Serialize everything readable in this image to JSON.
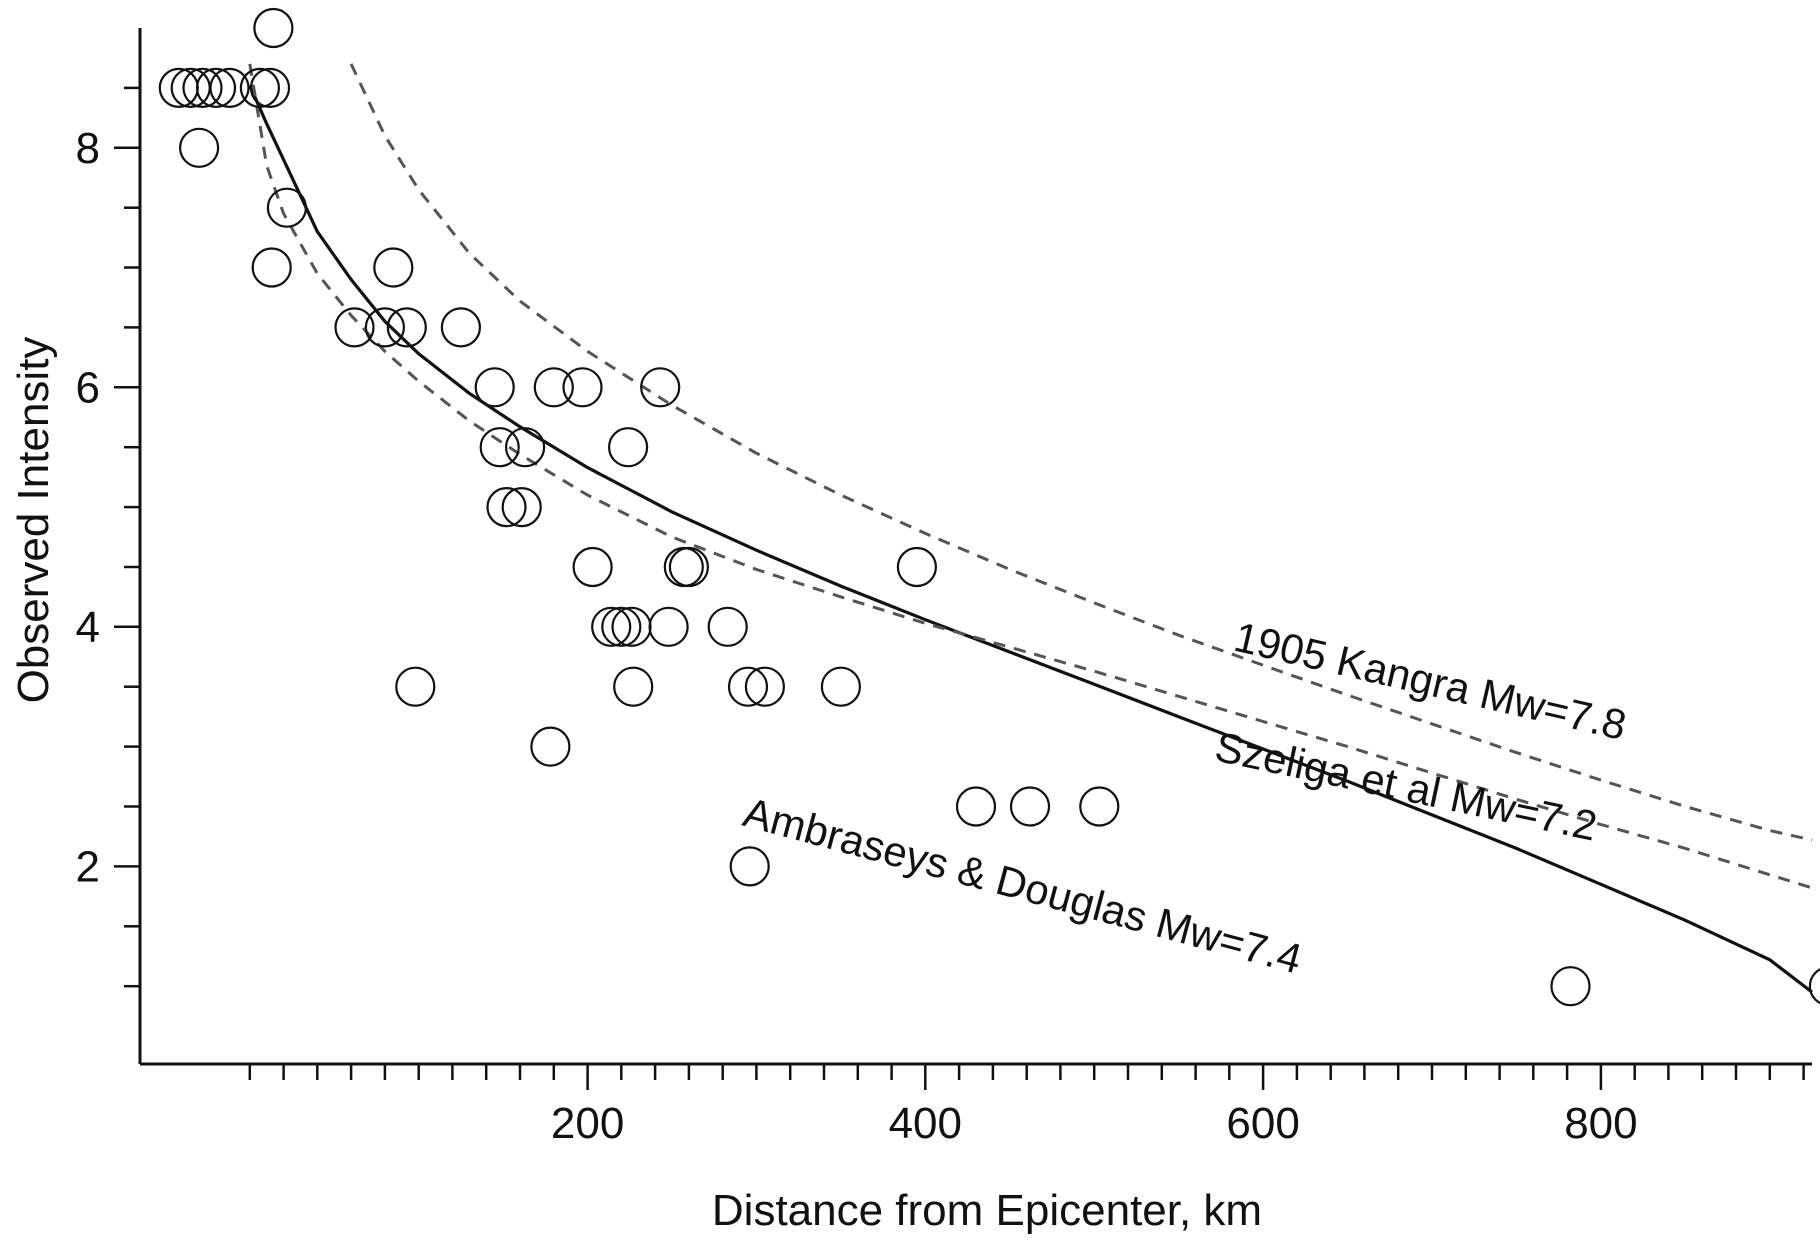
{
  "chart_data": {
    "type": "scatter",
    "title": "",
    "xlabel": "Distance from Epicenter, km",
    "ylabel": "Observed  Intensity",
    "xlim": [
      -65,
      925
    ],
    "ylim": [
      0.35,
      9.0
    ],
    "x_ticks": [
      200,
      400,
      600,
      800
    ],
    "x_minor_step": 20,
    "y_ticks": [
      2,
      4,
      6,
      8
    ],
    "y_minor_step": 0.5,
    "grid": false,
    "marker": "open-circle",
    "points": [
      {
        "x": -42,
        "y": 8.5
      },
      {
        "x": -35,
        "y": 8.5
      },
      {
        "x": -28,
        "y": 8.5
      },
      {
        "x": -20,
        "y": 8.5
      },
      {
        "x": -12,
        "y": 8.5
      },
      {
        "x": 6,
        "y": 8.5
      },
      {
        "x": 12,
        "y": 8.5
      },
      {
        "x": 14,
        "y": 9.0
      },
      {
        "x": -30,
        "y": 8.0
      },
      {
        "x": 22,
        "y": 7.5
      },
      {
        "x": 13,
        "y": 7.0
      },
      {
        "x": 85,
        "y": 7.0
      },
      {
        "x": 62,
        "y": 6.5
      },
      {
        "x": 80,
        "y": 6.5
      },
      {
        "x": 93,
        "y": 6.5
      },
      {
        "x": 125,
        "y": 6.5
      },
      {
        "x": 145,
        "y": 6.0
      },
      {
        "x": 180,
        "y": 6.0
      },
      {
        "x": 197,
        "y": 6.0
      },
      {
        "x": 243,
        "y": 6.0
      },
      {
        "x": 148,
        "y": 5.5
      },
      {
        "x": 163,
        "y": 5.5
      },
      {
        "x": 224,
        "y": 5.5
      },
      {
        "x": 152,
        "y": 5.0
      },
      {
        "x": 161,
        "y": 5.0
      },
      {
        "x": 203,
        "y": 4.5
      },
      {
        "x": 257,
        "y": 4.5
      },
      {
        "x": 260,
        "y": 4.5
      },
      {
        "x": 395,
        "y": 4.5
      },
      {
        "x": 214,
        "y": 4.0
      },
      {
        "x": 220,
        "y": 4.0
      },
      {
        "x": 226,
        "y": 4.0
      },
      {
        "x": 248,
        "y": 4.0
      },
      {
        "x": 283,
        "y": 4.0
      },
      {
        "x": 98,
        "y": 3.5
      },
      {
        "x": 227,
        "y": 3.5
      },
      {
        "x": 295,
        "y": 3.5
      },
      {
        "x": 305,
        "y": 3.5
      },
      {
        "x": 350,
        "y": 3.5
      },
      {
        "x": 178,
        "y": 3.0
      },
      {
        "x": 430,
        "y": 2.5
      },
      {
        "x": 462,
        "y": 2.5
      },
      {
        "x": 503,
        "y": 2.5
      },
      {
        "x": 296,
        "y": 2.0
      },
      {
        "x": 782,
        "y": 1.0
      },
      {
        "x": 935,
        "y": 1.0
      }
    ],
    "series": [
      {
        "name": "Ambraseys & Douglas Mw=7.4",
        "style": "solid",
        "color": "#111111",
        "x": [
          0,
          10,
          20,
          40,
          60,
          80,
          100,
          130,
          160,
          200,
          250,
          300,
          350,
          400,
          450,
          500,
          550,
          600,
          650,
          700,
          750,
          800,
          850,
          900,
          925
        ],
        "y": [
          8.52,
          8.2,
          7.9,
          7.3,
          6.9,
          6.55,
          6.28,
          5.95,
          5.67,
          5.33,
          4.96,
          4.64,
          4.34,
          4.06,
          3.79,
          3.52,
          3.25,
          2.98,
          2.71,
          2.43,
          2.15,
          1.85,
          1.55,
          1.22,
          0.95
        ]
      },
      {
        "name": "Szeliga et al Mw=7.2",
        "style": "dashed",
        "color": "#555555",
        "x": [
          0,
          10,
          20,
          40,
          60,
          80,
          100,
          130,
          160,
          200,
          250,
          300,
          350,
          400,
          450,
          500,
          550,
          600,
          650,
          700,
          750,
          800,
          850,
          900,
          925
        ],
        "y": [
          8.7,
          7.85,
          7.45,
          6.95,
          6.6,
          6.3,
          6.05,
          5.72,
          5.44,
          5.1,
          4.75,
          4.48,
          4.25,
          4.03,
          3.83,
          3.63,
          3.42,
          3.21,
          3.0,
          2.78,
          2.56,
          2.35,
          2.15,
          1.93,
          1.82
        ]
      },
      {
        "name": "1905 Kangra Mw=7.8",
        "style": "dashed",
        "color": "#555555",
        "x": [
          60,
          80,
          100,
          130,
          160,
          200,
          250,
          300,
          350,
          400,
          450,
          500,
          550,
          600,
          650,
          700,
          750,
          800,
          850,
          900,
          925
        ],
        "y": [
          8.7,
          8.1,
          7.65,
          7.12,
          6.72,
          6.3,
          5.85,
          5.45,
          5.1,
          4.78,
          4.48,
          4.2,
          3.93,
          3.68,
          3.43,
          3.19,
          2.95,
          2.72,
          2.5,
          2.3,
          2.22
        ]
      }
    ],
    "annotations": [
      {
        "text": "1905 Kangra Mw=7.8",
        "series": 2
      },
      {
        "text": "Szeliga et al Mw=7.2",
        "series": 1
      },
      {
        "text": "Ambraseys & Douglas Mw=7.4",
        "series": 0
      }
    ]
  }
}
